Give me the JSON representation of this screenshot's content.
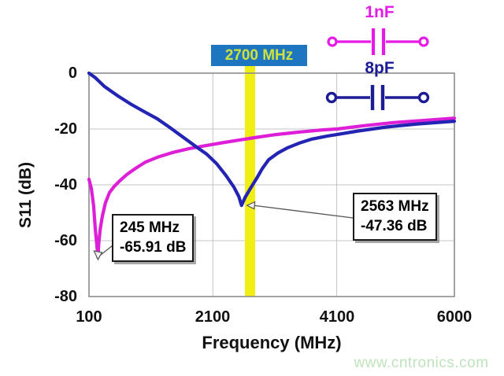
{
  "chart_data": {
    "type": "line",
    "title": "",
    "xlabel": "Frequency (MHz)",
    "ylabel": "S11 (dB)",
    "xlim": [
      100,
      6000
    ],
    "ylim": [
      -80,
      0
    ],
    "grid": true,
    "x_ticks": {
      "labels": [
        "100",
        "2100",
        "4100",
        "6000"
      ],
      "values": [
        100,
        2100,
        4100,
        6000
      ]
    },
    "y_ticks": {
      "labels": [
        "0",
        "-20",
        "-40",
        "-60",
        "-80"
      ],
      "values": [
        0,
        -20,
        -40,
        -60,
        -80
      ]
    },
    "marker": {
      "label": "2700 MHz",
      "frequency_mhz": 2700,
      "band_color": "#f0ee12",
      "label_bg": "#1d76bf",
      "label_color": "#cde23c"
    },
    "series": [
      {
        "name": "1nF",
        "color": "#dd1fd8",
        "points": [
          [
            100,
            -38
          ],
          [
            140,
            -41.5
          ],
          [
            175,
            -47.5
          ],
          [
            200,
            -55.5
          ],
          [
            225,
            -61
          ],
          [
            245,
            -65.91
          ],
          [
            258,
            -61
          ],
          [
            280,
            -56
          ],
          [
            315,
            -51.3
          ],
          [
            365,
            -46.5
          ],
          [
            430,
            -42.8
          ],
          [
            505,
            -40.6
          ],
          [
            595,
            -38.6
          ],
          [
            710,
            -36.3
          ],
          [
            850,
            -34.1
          ],
          [
            1015,
            -31.8
          ],
          [
            1205,
            -30.1
          ],
          [
            1435,
            -28.5
          ],
          [
            1715,
            -27
          ],
          [
            2000,
            -25.9
          ],
          [
            2290,
            -24.8
          ],
          [
            2605,
            -23.7
          ],
          [
            2770,
            -23.1
          ],
          [
            3115,
            -22
          ],
          [
            3495,
            -21.1
          ],
          [
            3875,
            -20.3
          ],
          [
            4105,
            -20
          ],
          [
            4510,
            -18.9
          ],
          [
            5020,
            -17.7
          ],
          [
            5530,
            -16.9
          ],
          [
            6000,
            -16.1
          ]
        ]
      },
      {
        "name": "8pF",
        "color": "#2424b4",
        "points": [
          [
            100,
            0
          ],
          [
            200,
            -1.6
          ],
          [
            350,
            -4.8
          ],
          [
            570,
            -8.2
          ],
          [
            790,
            -11.3
          ],
          [
            1000,
            -13.9
          ],
          [
            1200,
            -16.3
          ],
          [
            1420,
            -19.7
          ],
          [
            1630,
            -23.1
          ],
          [
            1840,
            -26.5
          ],
          [
            2000,
            -29
          ],
          [
            2160,
            -32.4
          ],
          [
            2310,
            -36.6
          ],
          [
            2440,
            -40.8
          ],
          [
            2520,
            -44.2
          ],
          [
            2563,
            -47.36
          ],
          [
            2620,
            -44.5
          ],
          [
            2700,
            -41.5
          ],
          [
            2820,
            -37.2
          ],
          [
            2900,
            -34.1
          ],
          [
            3000,
            -31
          ],
          [
            3150,
            -28.6
          ],
          [
            3300,
            -26.8
          ],
          [
            3500,
            -25
          ],
          [
            3700,
            -23.6
          ],
          [
            3950,
            -22.5
          ],
          [
            4100,
            -22
          ],
          [
            4450,
            -20.7
          ],
          [
            4900,
            -19.3
          ],
          [
            5400,
            -18.2
          ],
          [
            6000,
            -17.2
          ]
        ]
      }
    ],
    "annotations": [
      {
        "line1": "245 MHz",
        "line2": "-65.91 dB",
        "target": [
          245,
          -65.91
        ]
      },
      {
        "line1": "2563 MHz",
        "line2": "-47.36 dB",
        "target": [
          2563,
          -47.36
        ]
      }
    ],
    "legend_position": "none"
  },
  "schematic": {
    "cap1": {
      "label": "1nF",
      "color": "#e61ae6"
    },
    "cap2": {
      "label": "8pF",
      "color": "#1c1c96"
    }
  },
  "watermark": {
    "text": "www.cntronics.com",
    "color": "#bfe3bd"
  }
}
